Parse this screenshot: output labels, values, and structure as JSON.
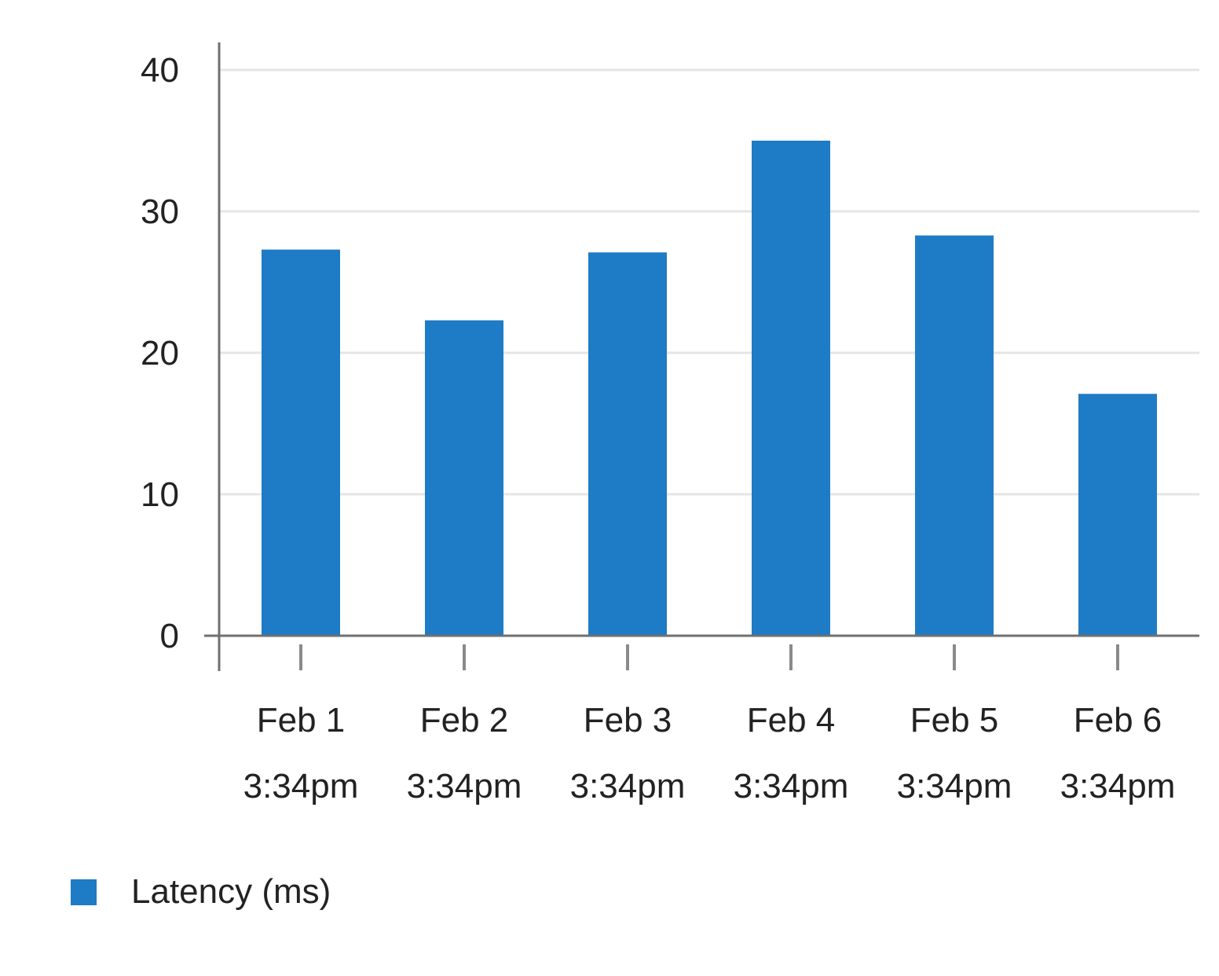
{
  "chart_data": {
    "type": "bar",
    "categories": [
      [
        "Feb 1",
        "3:34pm"
      ],
      [
        "Feb 2",
        "3:34pm"
      ],
      [
        "Feb 3",
        "3:34pm"
      ],
      [
        "Feb 4",
        "3:34pm"
      ],
      [
        "Feb 5",
        "3:34pm"
      ],
      [
        "Feb 6",
        "3:34pm"
      ]
    ],
    "series": [
      {
        "name": "Latency (ms)",
        "values": [
          27.3,
          22.3,
          27.1,
          35.0,
          28.3,
          17.1
        ],
        "color": "#1e7bc6"
      }
    ],
    "ylim": [
      0,
      40
    ],
    "yticks": [
      0,
      10,
      20,
      30,
      40
    ],
    "grid": true,
    "legend_position": "bottom-left",
    "colors": {
      "grid": "#e5e5e5",
      "axis": "#707070",
      "tick": "#8a8a8a",
      "text": "#222222"
    }
  }
}
